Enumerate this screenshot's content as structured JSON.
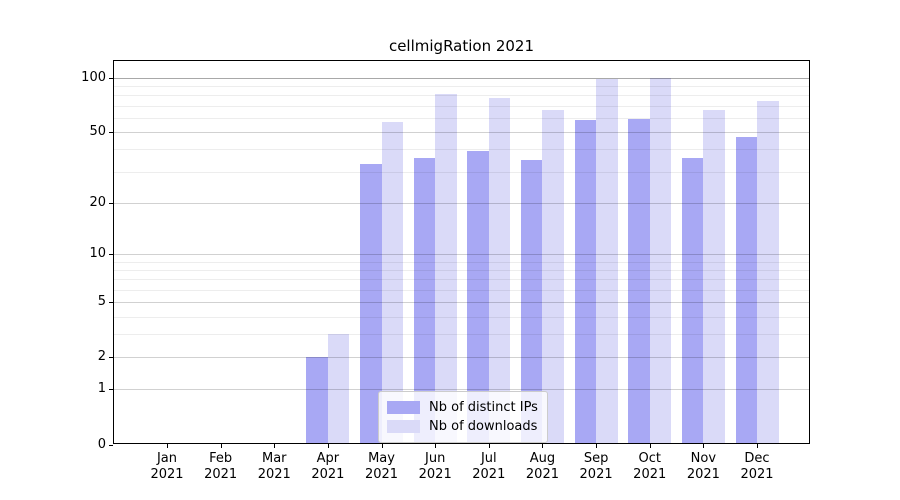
{
  "title": "cellmigRation 2021",
  "chart_data": {
    "type": "bar",
    "title": "cellmigRation 2021",
    "categories": [
      "Jan 2021",
      "Feb 2021",
      "Mar 2021",
      "Apr 2021",
      "May 2021",
      "Jun 2021",
      "Jul 2021",
      "Aug 2021",
      "Sep 2021",
      "Oct 2021",
      "Nov 2021",
      "Dec 2021"
    ],
    "series": [
      {
        "name": "Nb of distinct IPs",
        "color": "#a8a8f4",
        "values": [
          0,
          0,
          0,
          2,
          33,
          36,
          39,
          35,
          58,
          59,
          36,
          47
        ]
      },
      {
        "name": "Nb of downloads",
        "color": "#dadaf8",
        "values": [
          0,
          0,
          0,
          3,
          57,
          81,
          77,
          66,
          99,
          100,
          66,
          74
        ]
      }
    ],
    "xlabel": "",
    "ylabel": "",
    "yscale": "log1p",
    "ylim": [
      0,
      123
    ],
    "yticks": [
      0,
      1,
      2,
      5,
      10,
      20,
      50,
      100
    ],
    "yticks_minor": [
      3,
      4,
      6,
      7,
      8,
      9,
      30,
      40,
      60,
      70,
      80,
      90
    ],
    "grid": true,
    "legend_position": "lower center"
  },
  "months": [
    {
      "abbr": "Jan",
      "year": "2021"
    },
    {
      "abbr": "Feb",
      "year": "2021"
    },
    {
      "abbr": "Mar",
      "year": "2021"
    },
    {
      "abbr": "Apr",
      "year": "2021"
    },
    {
      "abbr": "May",
      "year": "2021"
    },
    {
      "abbr": "Jun",
      "year": "2021"
    },
    {
      "abbr": "Jul",
      "year": "2021"
    },
    {
      "abbr": "Aug",
      "year": "2021"
    },
    {
      "abbr": "Sep",
      "year": "2021"
    },
    {
      "abbr": "Oct",
      "year": "2021"
    },
    {
      "abbr": "Nov",
      "year": "2021"
    },
    {
      "abbr": "Dec",
      "year": "2021"
    }
  ],
  "legend": {
    "items": [
      {
        "label": "Nb of distinct IPs",
        "color": "#a8a8f4"
      },
      {
        "label": "Nb of downloads",
        "color": "#dadaf8"
      }
    ]
  },
  "colors": {
    "background": "#ffffff",
    "axis": "#000000",
    "text": "#000000",
    "bar_distinct_ips": "#a8a8f4",
    "bar_downloads": "#dadaf8",
    "grid_major": "rgba(0,0,0,0.18)",
    "grid_minor": "rgba(0,0,0,0.07)",
    "grid_line_100": "rgba(0,0,0,0.34)"
  }
}
